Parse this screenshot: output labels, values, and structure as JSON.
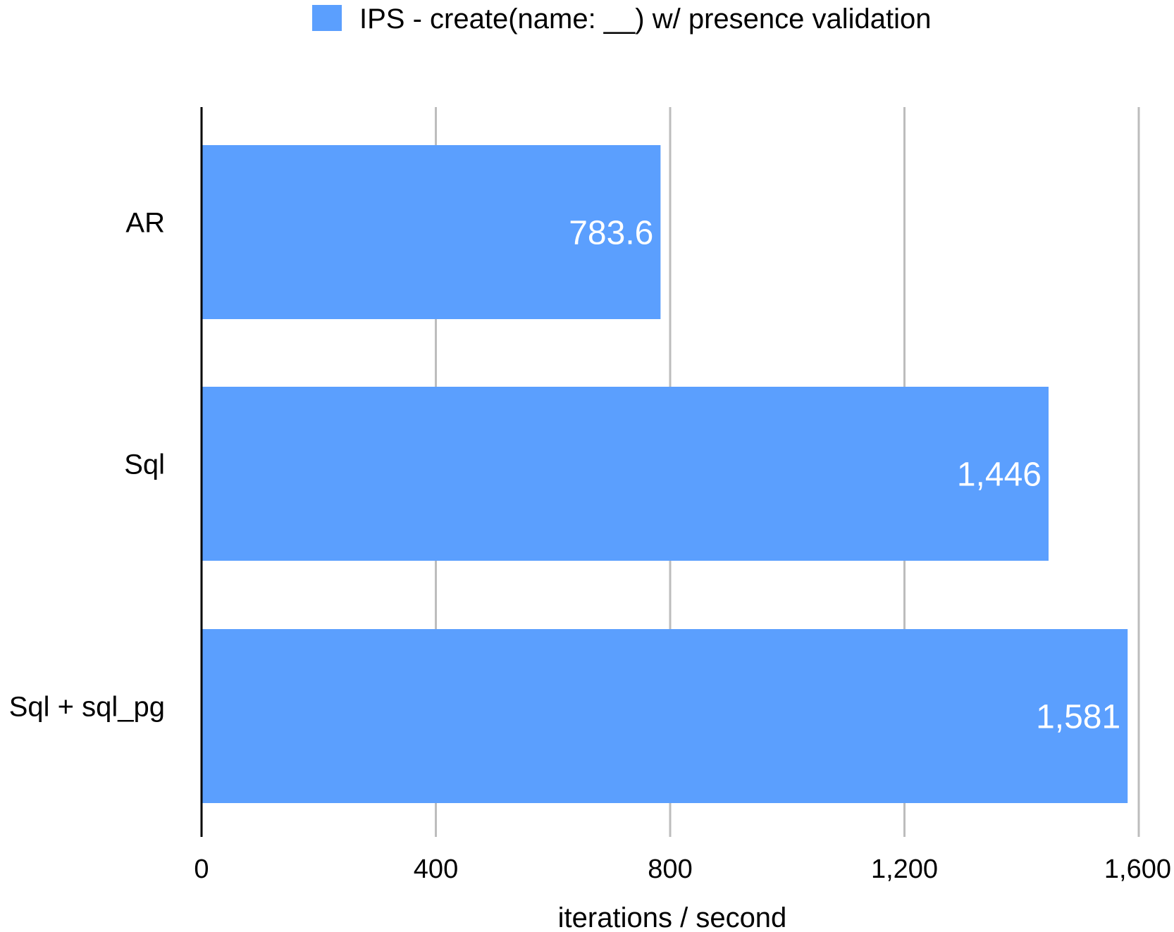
{
  "chart_data": {
    "type": "bar",
    "orientation": "horizontal",
    "categories": [
      "AR",
      "Sql",
      "Sql + sql_pg"
    ],
    "series": [
      {
        "name": "IPS - create(name: __) w/ presence validation",
        "values": [
          783.6,
          1446,
          1581
        ],
        "labels": [
          "783.6",
          "1,446",
          "1,581"
        ],
        "color": "#5b9ffe"
      }
    ],
    "xlabel": "iterations / second",
    "ylabel": "",
    "xlim": [
      0,
      1600
    ],
    "x_ticks": [
      0,
      400,
      800,
      1200,
      1600
    ],
    "x_tick_labels": [
      "0",
      "400",
      "800",
      "1,200",
      "1,600"
    ],
    "grid": true,
    "legend_position": "top-center"
  }
}
